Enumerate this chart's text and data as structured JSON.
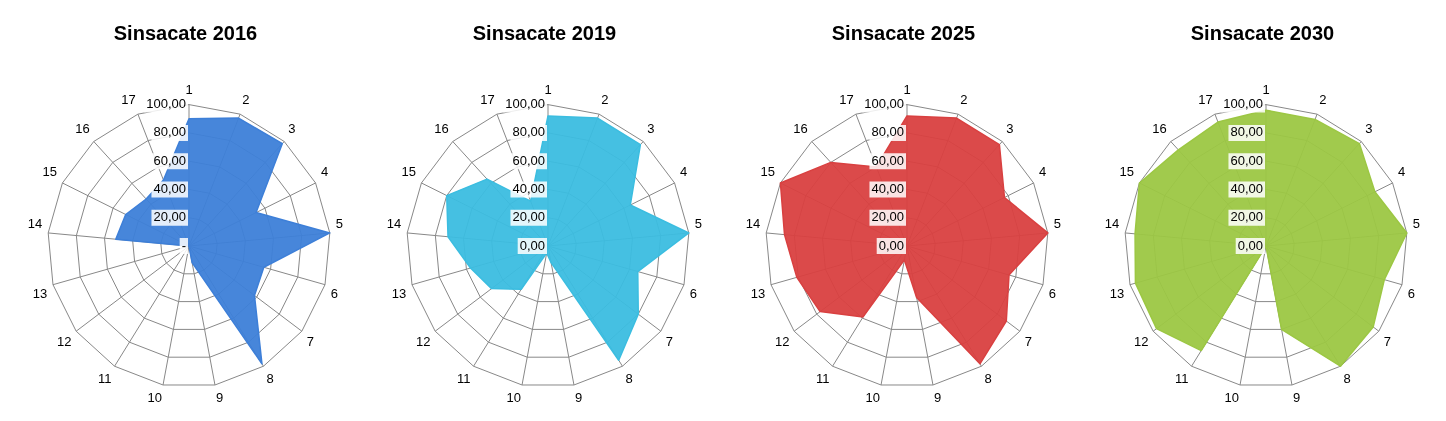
{
  "chart_data": [
    {
      "type": "radar",
      "title": "Sinsacate 2016",
      "categories": [
        "1",
        "2",
        "3",
        "4",
        "5",
        "6",
        "7",
        "8",
        "9",
        "10",
        "11",
        "12",
        "13",
        "14",
        "15",
        "16",
        "17"
      ],
      "ylim": [
        0,
        100
      ],
      "yticks": [
        {
          "value": 0,
          "label": "-"
        },
        {
          "value": 20,
          "label": "20,00"
        },
        {
          "value": 40,
          "label": "40,00"
        },
        {
          "value": 60,
          "label": "60,00"
        },
        {
          "value": 80,
          "label": "80,00"
        },
        {
          "value": 100,
          "label": "100,00"
        }
      ],
      "grid": true,
      "legend": false,
      "series": [
        {
          "color": "#3d7fd8",
          "values": [
            90,
            97,
            98,
            53,
            100,
            55,
            58,
            98,
            12,
            0,
            0,
            0,
            0,
            52,
            50,
            45,
            50
          ]
        }
      ]
    },
    {
      "type": "radar",
      "title": "Sinsacate 2019",
      "categories": [
        "1",
        "2",
        "3",
        "4",
        "5",
        "6",
        "7",
        "8",
        "9",
        "10",
        "11",
        "12",
        "13",
        "14",
        "15",
        "16",
        "17"
      ],
      "ylim": [
        0,
        100
      ],
      "yticks": [
        {
          "value": 0,
          "label": "0,00"
        },
        {
          "value": 20,
          "label": "20,00"
        },
        {
          "value": 40,
          "label": "40,00"
        },
        {
          "value": 60,
          "label": "60,00"
        },
        {
          "value": 80,
          "label": "80,00"
        },
        {
          "value": 100,
          "label": "100,00"
        }
      ],
      "grid": true,
      "legend": false,
      "series": [
        {
          "color": "#3bbde0",
          "values": [
            92,
            97,
            97,
            65,
            100,
            66,
            80,
            95,
            12,
            5,
            36,
            50,
            57,
            71,
            80,
            64,
            34
          ]
        }
      ]
    },
    {
      "type": "radar",
      "title": "Sinsacate 2025",
      "categories": [
        "1",
        "2",
        "3",
        "4",
        "5",
        "6",
        "7",
        "8",
        "9",
        "10",
        "11",
        "12",
        "13",
        "14",
        "15",
        "16",
        "17"
      ],
      "ylim": [
        0,
        100
      ],
      "yticks": [
        {
          "value": 0,
          "label": "0,00"
        },
        {
          "value": 20,
          "label": "20,00"
        },
        {
          "value": 40,
          "label": "40,00"
        },
        {
          "value": 60,
          "label": "60,00"
        },
        {
          "value": 80,
          "label": "80,00"
        },
        {
          "value": 100,
          "label": "100,00"
        }
      ],
      "grid": true,
      "legend": false,
      "series": [
        {
          "color": "#d94040",
          "values": [
            92,
            97,
            97,
            77,
            100,
            75,
            88,
            98,
            37,
            10,
            59,
            77,
            81,
            87,
            100,
            80,
            60
          ]
        }
      ]
    },
    {
      "type": "radar",
      "title": "Sinsacate 2030",
      "categories": [
        "1",
        "2",
        "3",
        "4",
        "5",
        "6",
        "7",
        "8",
        "9",
        "10",
        "11",
        "12",
        "13",
        "14",
        "15",
        "16",
        "17"
      ],
      "ylim": [
        0,
        100
      ],
      "yticks": [
        {
          "value": 0,
          "label": "0,00"
        },
        {
          "value": 20,
          "label": "20,00"
        },
        {
          "value": 40,
          "label": "40,00"
        },
        {
          "value": 60,
          "label": "60,00"
        },
        {
          "value": 80,
          "label": "80,00"
        },
        {
          "value": 100,
          "label": "100,00"
        }
      ],
      "grid": true,
      "legend": false,
      "series": [
        {
          "color": "#9cc743",
          "values": [
            96,
            96,
            98,
            86,
            100,
            87,
            95,
            100,
            60,
            0,
            87,
            97,
            96,
            93,
            100,
            92,
            94
          ]
        }
      ]
    }
  ]
}
